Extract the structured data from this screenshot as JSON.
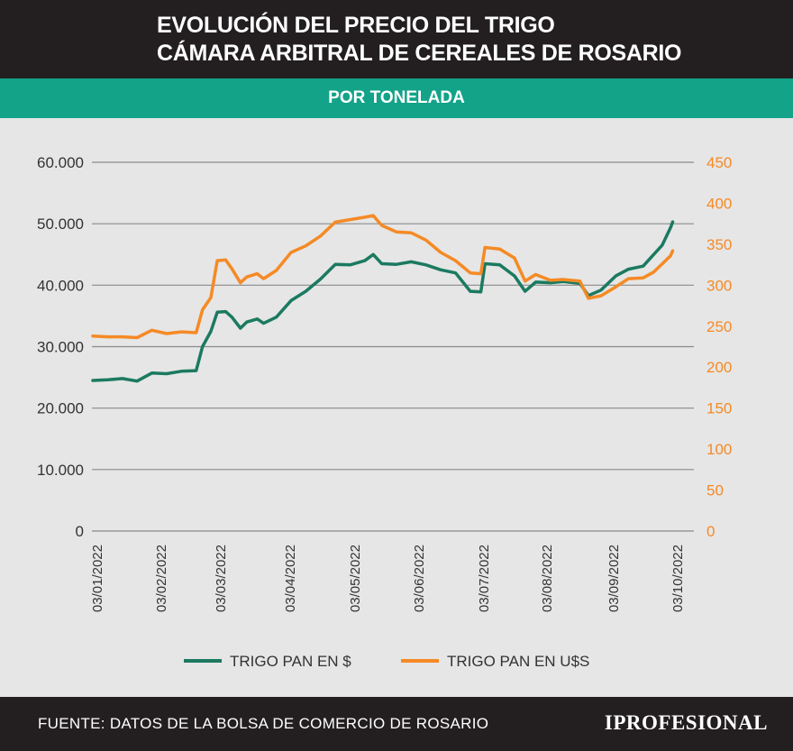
{
  "header": {
    "title_line1": "EVOLUCIÓN DEL PRECIO DEL TRIGO",
    "title_line2": "CÁMARA ARBITRAL DE  CEREALES DE ROSARIO",
    "subtitle": "POR TONELADA"
  },
  "footer": {
    "source": "FUENTE: DATOS DE LA BOLSA DE COMERCIO DE ROSARIO",
    "brand": "IPROFESIONAL"
  },
  "colors": {
    "peso_series": "#1b7a60",
    "usd_series": "#f58a25",
    "header_bg": "#231f20",
    "band_bg": "#12a389",
    "plot_bg": "#e6e6e6",
    "grid": "#8a8a8a"
  },
  "chart_data": {
    "type": "line",
    "title": "EVOLUCIÓN DEL PRECIO DEL TRIGO",
    "subtitle": "POR TONELADA",
    "x_tick_labels": [
      "03/01/2022",
      "03/02/2022",
      "03/03/2022",
      "03/04/2022",
      "03/05/2022",
      "03/06/2022",
      "03/07/2022",
      "03/08/2022",
      "03/09/2022",
      "03/10/2022"
    ],
    "y_left": {
      "ticks": [
        "0",
        "10.000",
        "20.000",
        "30.000",
        "40.000",
        "50.000",
        "60.000"
      ],
      "ylim": [
        0,
        60000
      ]
    },
    "y_right": {
      "ticks": [
        "0",
        "50",
        "100",
        "150",
        "200",
        "250",
        "300",
        "350",
        "400",
        "450"
      ],
      "ylim": [
        0,
        450
      ]
    },
    "grid": true,
    "legend_position": "bottom",
    "series": [
      {
        "name": "TRIGO PAN EN $",
        "axis": "left",
        "points": [
          [
            "2022-01-03",
            24500
          ],
          [
            "2022-01-10",
            24600
          ],
          [
            "2022-01-17",
            24800
          ],
          [
            "2022-01-24",
            24400
          ],
          [
            "2022-01-31",
            25700
          ],
          [
            "2022-02-07",
            25600
          ],
          [
            "2022-02-14",
            26000
          ],
          [
            "2022-02-21",
            26100
          ],
          [
            "2022-02-24",
            30000
          ],
          [
            "2022-02-28",
            32500
          ],
          [
            "2022-03-03",
            35600
          ],
          [
            "2022-03-07",
            35700
          ],
          [
            "2022-03-10",
            34800
          ],
          [
            "2022-03-14",
            33000
          ],
          [
            "2022-03-17",
            34000
          ],
          [
            "2022-03-22",
            34500
          ],
          [
            "2022-03-25",
            33800
          ],
          [
            "2022-03-31",
            34800
          ],
          [
            "2022-04-07",
            37500
          ],
          [
            "2022-04-14",
            39000
          ],
          [
            "2022-04-21",
            41000
          ],
          [
            "2022-04-28",
            43400
          ],
          [
            "2022-05-05",
            43300
          ],
          [
            "2022-05-12",
            44000
          ],
          [
            "2022-05-16",
            45000
          ],
          [
            "2022-05-20",
            43500
          ],
          [
            "2022-05-27",
            43400
          ],
          [
            "2022-06-03",
            43800
          ],
          [
            "2022-06-10",
            43300
          ],
          [
            "2022-06-17",
            42500
          ],
          [
            "2022-06-24",
            42000
          ],
          [
            "2022-07-01",
            39000
          ],
          [
            "2022-07-06",
            38900
          ],
          [
            "2022-07-08",
            43500
          ],
          [
            "2022-07-15",
            43300
          ],
          [
            "2022-07-22",
            41500
          ],
          [
            "2022-07-27",
            39000
          ],
          [
            "2022-08-01",
            40500
          ],
          [
            "2022-08-08",
            40400
          ],
          [
            "2022-08-14",
            40600
          ],
          [
            "2022-08-22",
            40300
          ],
          [
            "2022-08-26",
            38300
          ],
          [
            "2022-09-01",
            39200
          ],
          [
            "2022-09-08",
            41500
          ],
          [
            "2022-09-14",
            42600
          ],
          [
            "2022-09-21",
            43100
          ],
          [
            "2022-09-26",
            45000
          ],
          [
            "2022-09-30",
            46500
          ],
          [
            "2022-10-04",
            49400
          ],
          [
            "2022-10-05",
            50300
          ]
        ]
      },
      {
        "name": "TRIGO PAN EN U$S",
        "axis": "right",
        "points": [
          [
            "2022-01-03",
            238
          ],
          [
            "2022-01-10",
            237
          ],
          [
            "2022-01-17",
            237
          ],
          [
            "2022-01-24",
            236
          ],
          [
            "2022-01-31",
            245
          ],
          [
            "2022-02-07",
            241
          ],
          [
            "2022-02-14",
            243
          ],
          [
            "2022-02-21",
            242
          ],
          [
            "2022-02-24",
            270
          ],
          [
            "2022-02-28",
            285
          ],
          [
            "2022-03-03",
            330
          ],
          [
            "2022-03-07",
            331
          ],
          [
            "2022-03-10",
            320
          ],
          [
            "2022-03-14",
            303
          ],
          [
            "2022-03-17",
            310
          ],
          [
            "2022-03-22",
            314
          ],
          [
            "2022-03-25",
            308
          ],
          [
            "2022-03-31",
            318
          ],
          [
            "2022-04-07",
            340
          ],
          [
            "2022-04-14",
            348
          ],
          [
            "2022-04-21",
            360
          ],
          [
            "2022-04-28",
            377
          ],
          [
            "2022-05-05",
            380
          ],
          [
            "2022-05-12",
            383
          ],
          [
            "2022-05-16",
            385
          ],
          [
            "2022-05-20",
            373
          ],
          [
            "2022-05-27",
            365
          ],
          [
            "2022-06-03",
            364
          ],
          [
            "2022-06-10",
            355
          ],
          [
            "2022-06-17",
            340
          ],
          [
            "2022-06-24",
            330
          ],
          [
            "2022-07-01",
            315
          ],
          [
            "2022-07-06",
            314
          ],
          [
            "2022-07-08",
            346
          ],
          [
            "2022-07-15",
            344
          ],
          [
            "2022-07-22",
            333
          ],
          [
            "2022-07-27",
            305
          ],
          [
            "2022-08-01",
            313
          ],
          [
            "2022-08-08",
            306
          ],
          [
            "2022-08-14",
            307
          ],
          [
            "2022-08-22",
            305
          ],
          [
            "2022-08-26",
            284
          ],
          [
            "2022-09-01",
            287
          ],
          [
            "2022-09-08",
            298
          ],
          [
            "2022-09-14",
            308
          ],
          [
            "2022-09-21",
            309
          ],
          [
            "2022-09-26",
            316
          ],
          [
            "2022-09-30",
            326
          ],
          [
            "2022-10-04",
            336
          ],
          [
            "2022-10-05",
            342
          ]
        ]
      }
    ]
  }
}
